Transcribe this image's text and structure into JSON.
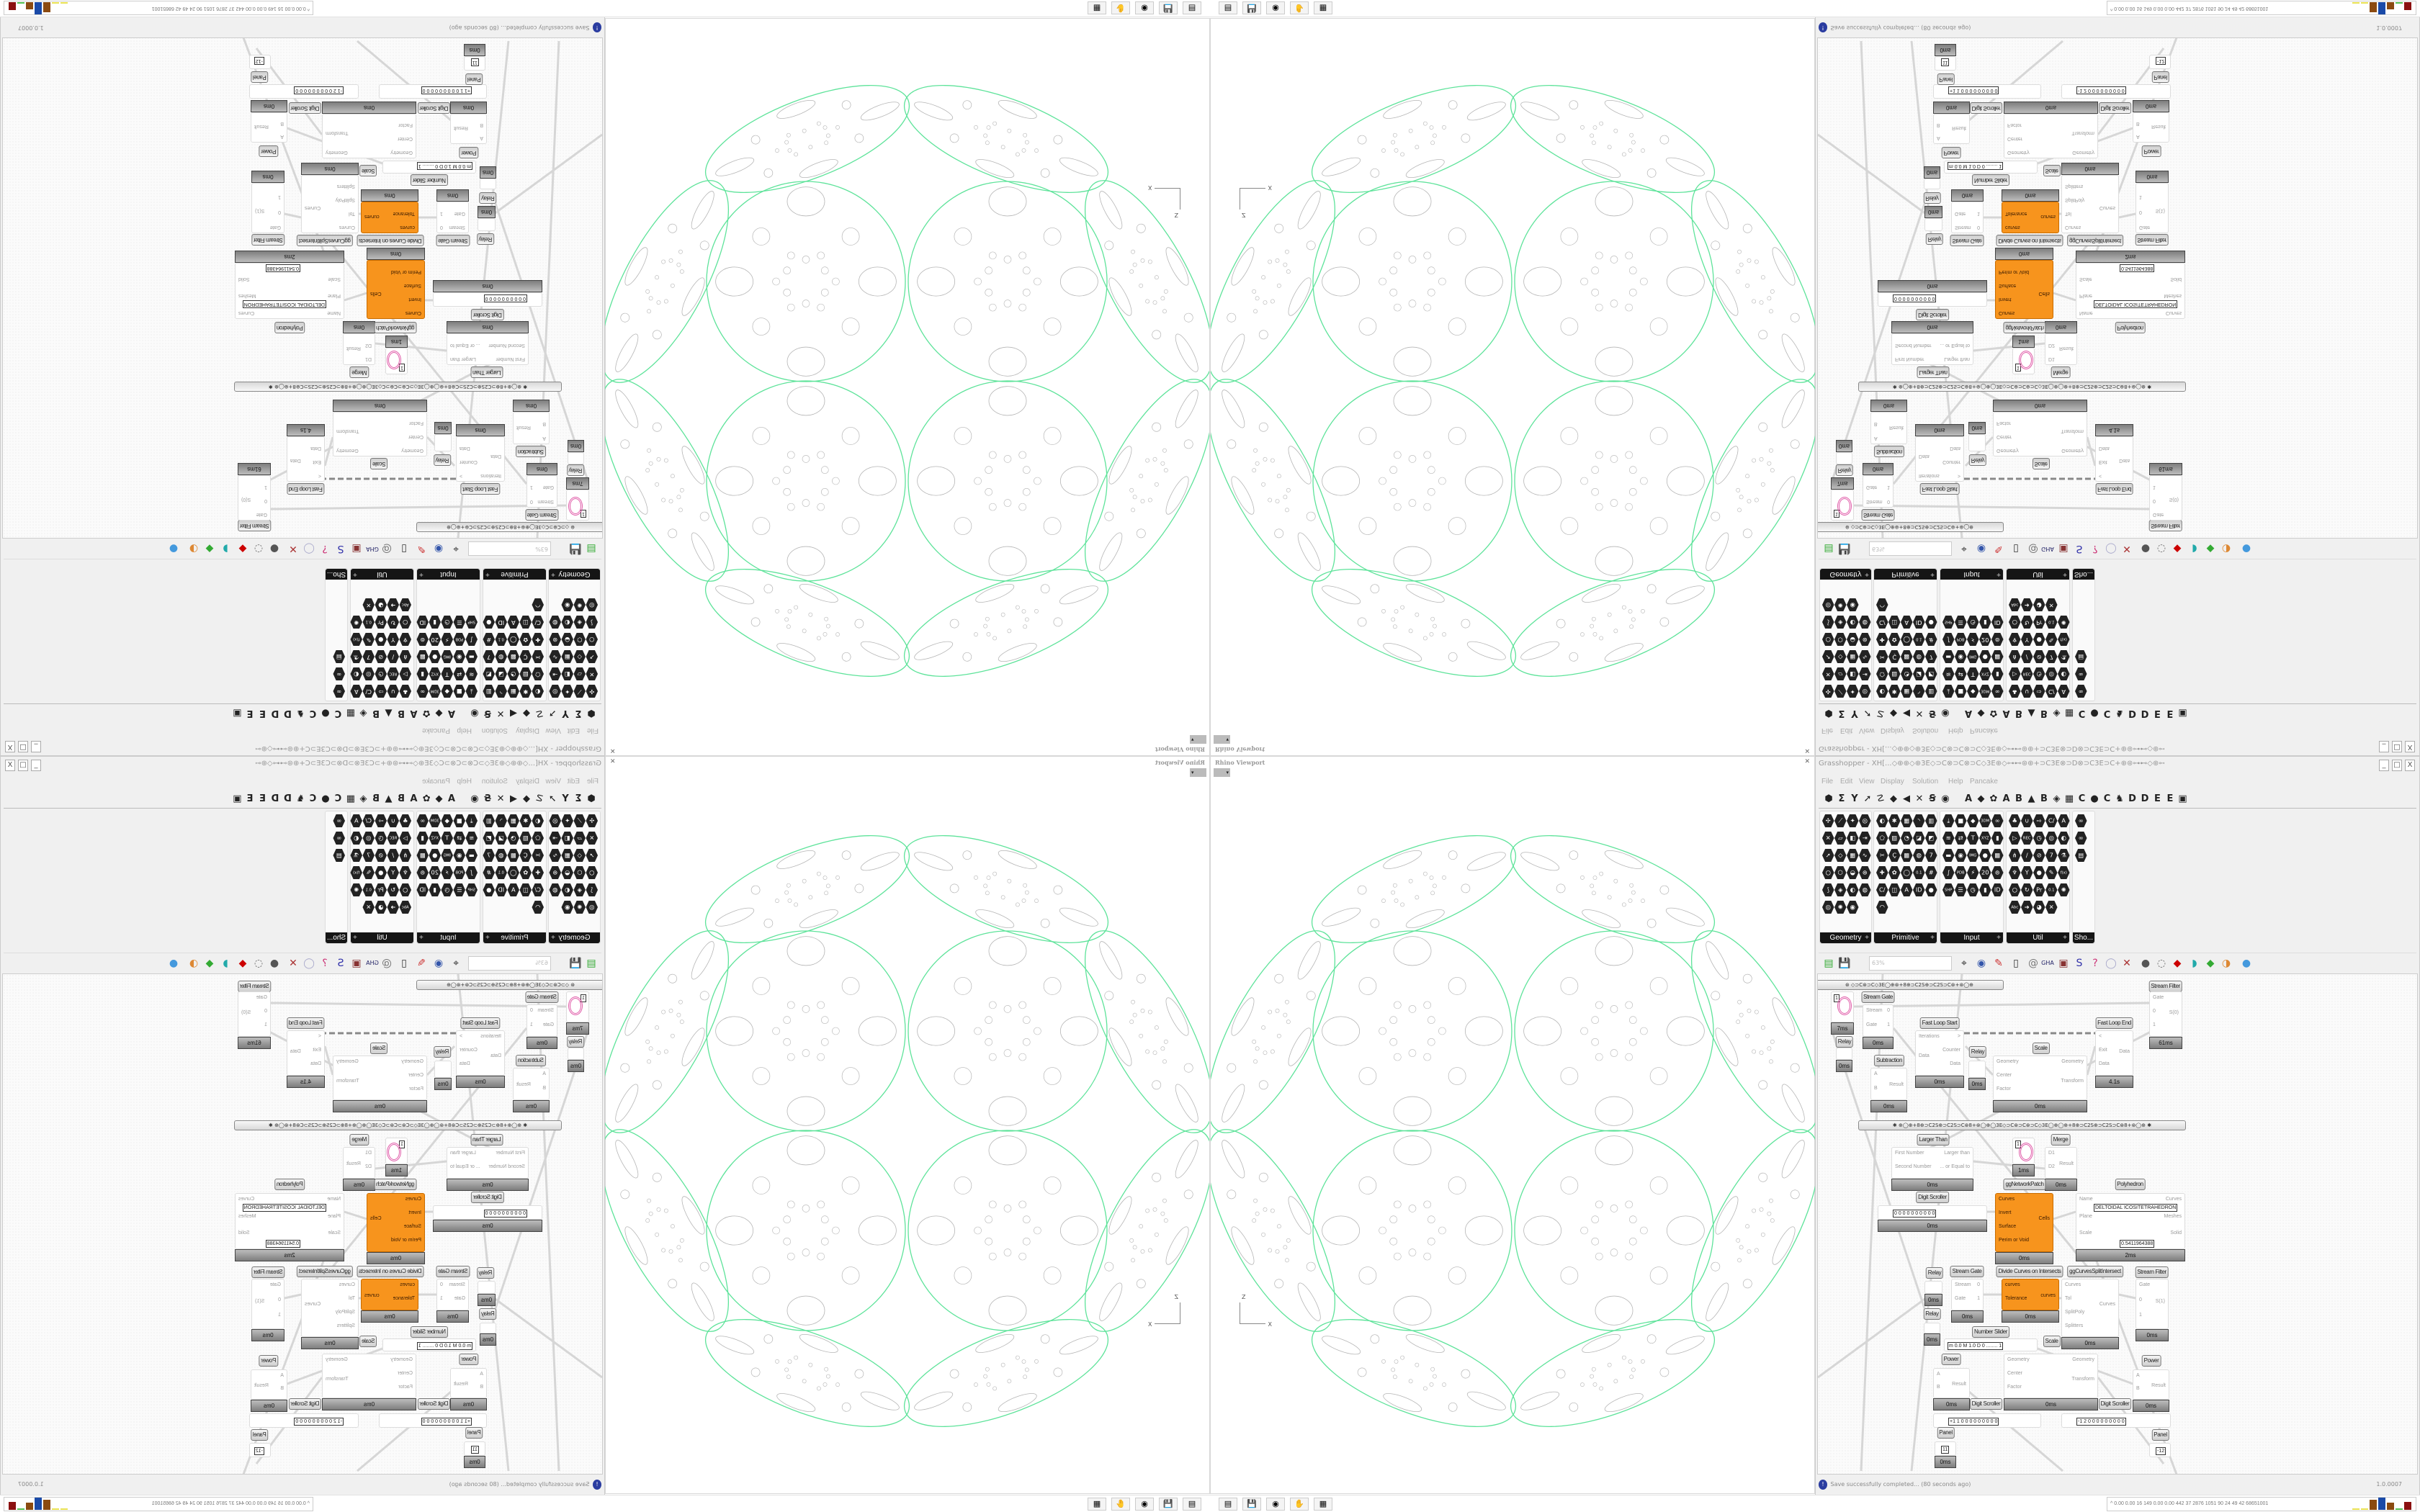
{
  "viewport": {
    "title": "Rhino Viewport",
    "close": "✕",
    "axis_z": "Z",
    "axis_x": "X",
    "curve_color": "#5ee39a",
    "detail_color": "#b5b5b5"
  },
  "taskbar": {
    "icons": [
      "▤",
      "💾",
      "◉",
      "✋",
      "▦"
    ],
    "tray_text": "^ 0.00 0.00  16  149 0.00 0.00 442  37  2876 1051  90  24  49  42  68651001",
    "bar_colors": [
      "#e8e050",
      "#e8e050",
      "#8b4a10",
      "#1a4aa8",
      "#8b4a10",
      "#50c050",
      "#8b1010"
    ]
  },
  "grasshopper": {
    "title": "Grasshopper - XH[...◇⊕⊕◇⊕3E◇⊃C⊗⊃C⊗⊃C◇3E⊕◇⊶⊷⊛⊕+⊃C3E⊗⊃D⊗⊃C3E⊃C+⊕⊛⊶⊷◇⊕⊶⊷⊕⊶⊷⊛◇⊛+++⊛◇⊛⊶⊷⊕⊶⊷⊕◇⊶⊷⊛⊕+⊃C3E⊗⊃D⊗⊃...",
    "window_buttons": [
      "_",
      "□",
      "X"
    ],
    "menu": [
      "File",
      "Edit",
      "View",
      "Display",
      "Solution",
      "Help",
      "Pancake"
    ],
    "tabs": [
      "⬢",
      "Σ",
      "Y",
      "➚",
      "☡",
      "◆",
      "◀",
      "✕",
      "Ꞩ",
      "◉",
      "A",
      "◆",
      "✿",
      "A",
      "B",
      "▲",
      "B",
      "◈",
      "▦",
      "C",
      "●",
      "C",
      "♞",
      "D",
      "D",
      "E",
      "E",
      "▣"
    ],
    "panels": [
      {
        "name": "Geometry",
        "icons": [
          "✣",
          "⟋",
          "✦",
          "◎",
          "✕",
          "▱",
          "◧",
          "⇥",
          "➚",
          "◇",
          "▦",
          "∿",
          "○",
          "⬡",
          "◒",
          "⊛",
          "⟆",
          "◈",
          "◐",
          "◍",
          "◎",
          "✺",
          "◉"
        ]
      },
      {
        "name": "Primitive",
        "icons": [
          "◐",
          "✱",
          "▦",
          "◝",
          "▥",
          "⬠",
          "▨",
          "◔",
          "◪",
          "◩",
          "✂",
          "Ç",
          "▩",
          "◍",
          "7",
          "✚",
          "✿",
          "◯",
          "0.1",
          "#",
          "C/",
          "◫",
          "A",
          "ID",
          "●",
          "◠"
        ]
      },
      {
        "name": "Input",
        "icons": [
          "⤓",
          "■",
          "◆",
          "3DM",
          "∞",
          "≋",
          "⇄",
          "T",
          "XYZ",
          "▮",
          "▬",
          "◉",
          "IMG",
          "●",
          "▩",
          "∫",
          "PDB",
          "⚡",
          "20",
          "⊚",
          "SHP",
          "☰",
          "◷",
          "▮",
          "ID"
        ]
      },
      {
        "name": "Util",
        "icons": [
          "♣",
          "∪",
          "⇨",
          "C/",
          "A",
          "▷",
          "REC",
          "◷",
          "◎",
          "◐",
          "⋔",
          "∕",
          "⊘",
          "7",
          "⚗",
          "♆",
          "Y",
          "●",
          "✎",
          "f(x)",
          "○",
          "↻",
          "Pr",
          "0.1",
          "✺",
          "Abc",
          "➜",
          "◕",
          "✕"
        ]
      },
      {
        "name": "Sho...",
        "icons": [
          "∞",
          "∞",
          "▤"
        ]
      }
    ],
    "panel_footer_plus": "+",
    "toolbar": {
      "zoom": "63%",
      "icons": [
        "▤",
        "💾",
        "⌖",
        "◉",
        "✎",
        "▯",
        "@",
        "GHA",
        "▣",
        "S",
        "?",
        "◯",
        "✕",
        "●",
        "◌",
        "◆",
        "◗",
        "◆",
        "◑",
        "●"
      ]
    },
    "group_bars": [
      "⊛ ◇⊃C⊛⊃C◇3E◯⊕⊛+8⊕⊃C2S⊕⊃C2S⊃C⊛+⊛◯⊕",
      "✱  ⊕◯⊕+8⊕⊃C2S⊕⊃C2S⊃C⊛8+⊛◯⊕◯3E◇⊃C⊛⊃C⊛⊃C◇3E◯⊕◯⊕+8⊕⊃C2S⊕⊃C2S⊃C⊛8+⊛◯⊕  ✱"
    ],
    "nodes": [
      {
        "label": "",
        "inputs": [],
        "outputs": [],
        "time": "7ms",
        "param": "1"
      },
      {
        "label": "Stream Gate",
        "inputs": [
          "Stream",
          "Gate"
        ],
        "outputs": [
          "0",
          "1"
        ],
        "time": "0ms"
      },
      {
        "label": "Relay",
        "inputs": [],
        "outputs": [],
        "time": "0ms"
      },
      {
        "label": "Subtraction",
        "inputs": [
          "A",
          "B"
        ],
        "outputs": [
          "Result"
        ],
        "time": "0ms"
      },
      {
        "label": "Fast Loop Start",
        "inputs": [
          "Iterations",
          "Data"
        ],
        "outputs": [
          ">",
          "Counter",
          "Data"
        ],
        "time": "0ms"
      },
      {
        "label": "Relay",
        "inputs": [],
        "outputs": [],
        "time": "0ms"
      },
      {
        "label": "Scale",
        "inputs": [
          "Geometry",
          "Center",
          "Factor"
        ],
        "outputs": [
          "Geometry",
          "Transform"
        ],
        "time": "0ms"
      },
      {
        "label": "Fast Loop End",
        "inputs": [
          "<",
          "Exit",
          "Data"
        ],
        "outputs": [
          "Data"
        ],
        "time": "4.1s"
      },
      {
        "label": "Stream Filter",
        "inputs": [
          "Gate",
          "0",
          "1"
        ],
        "outputs": [
          "S(0)"
        ],
        "time": "61ms"
      },
      {
        "label": "Larger Than",
        "inputs": [
          "First Number",
          "Second Number"
        ],
        "outputs": [
          "Larger than",
          "... or Equal to"
        ],
        "time": "0ms"
      },
      {
        "label": "",
        "inputs": [],
        "outputs": [],
        "time": "1ms",
        "param": "1"
      },
      {
        "label": "Merge",
        "inputs": [
          "D1",
          "D2"
        ],
        "outputs": [
          "Result"
        ],
        "time": "0ms"
      },
      {
        "label": "Digit Scroller",
        "inputs": [],
        "outputs": [],
        "time": "0ms",
        "value": "0 0 0 0 0 0 0 0 0 0"
      },
      {
        "label": "ggNetworkPatch",
        "inputs": [
          "Curves",
          "Invert",
          "Surface",
          "Perim or Void"
        ],
        "outputs": [
          "Cells"
        ],
        "time": "0ms",
        "orange": true
      },
      {
        "label": "Polyhedron",
        "inputs": [
          "Name",
          "Plane",
          "Scale"
        ],
        "outputs": [
          "Curves",
          "Meshes",
          "Solid"
        ],
        "time": "2ms",
        "fields": [
          "DELTOIDAL ICOSITETRAHEDRON",
          "0.5411964388"
        ]
      },
      {
        "label": "Relay",
        "inputs": [],
        "outputs": [],
        "time": "0ms"
      },
      {
        "label": "Stream Gate",
        "inputs": [
          "Stream",
          "Gate"
        ],
        "outputs": [
          "0",
          "1"
        ],
        "time": "0ms"
      },
      {
        "label": "Divide Curves on Intersects",
        "inputs": [
          "curves",
          "Tolerance"
        ],
        "outputs": [
          "curves"
        ],
        "time": "0ms",
        "orange": true
      },
      {
        "label": "ggCurvesSplitIntersect",
        "inputs": [
          "Curves",
          "Tol",
          "SplitPoly",
          "Splitters"
        ],
        "outputs": [
          "Curves"
        ],
        "time": "0ms"
      },
      {
        "label": "Stream Filter",
        "inputs": [
          "Gate",
          "0",
          "1"
        ],
        "outputs": [
          "S(1)"
        ],
        "time": "0ms"
      },
      {
        "label": "Relay",
        "inputs": [],
        "outputs": [],
        "time": "0ms"
      },
      {
        "label": "Number Slider",
        "inputs": [],
        "outputs": [],
        "time": "",
        "value": "m 0.0  M 1.0  D 0 ........ 1"
      },
      {
        "label": "Scale",
        "inputs": [
          "Geometry",
          "Center",
          "Factor"
        ],
        "outputs": [
          "Geometry",
          "Transform"
        ],
        "time": "0ms"
      },
      {
        "label": "Power",
        "inputs": [
          "A",
          "B"
        ],
        "outputs": [
          "Result"
        ],
        "time": "0ms"
      },
      {
        "label": "Power",
        "inputs": [
          "A",
          "B"
        ],
        "outputs": [
          "Result"
        ],
        "time": "0ms"
      },
      {
        "label": "Digit Scroller",
        "inputs": [],
        "outputs": [],
        "time": "",
        "value": "+1 1 0 0 0 0 0 0 0 0 0"
      },
      {
        "label": "Digit Scroller",
        "inputs": [],
        "outputs": [],
        "time": "",
        "value": "-1 2 0 0 0 0 0 0 0 0 0"
      },
      {
        "label": "Panel",
        "inputs": [],
        "outputs": [],
        "time": "0ms",
        "value": "11"
      },
      {
        "label": "Panel",
        "inputs": [],
        "outputs": [],
        "time": "",
        "value": "-12"
      },
      {
        "label": "Stream Filter",
        "inputs": [],
        "outputs": [],
        "time": ""
      }
    ],
    "status": {
      "message": "Save successfully completed... (80 seconds ago)",
      "version": "1.0.0007"
    }
  }
}
